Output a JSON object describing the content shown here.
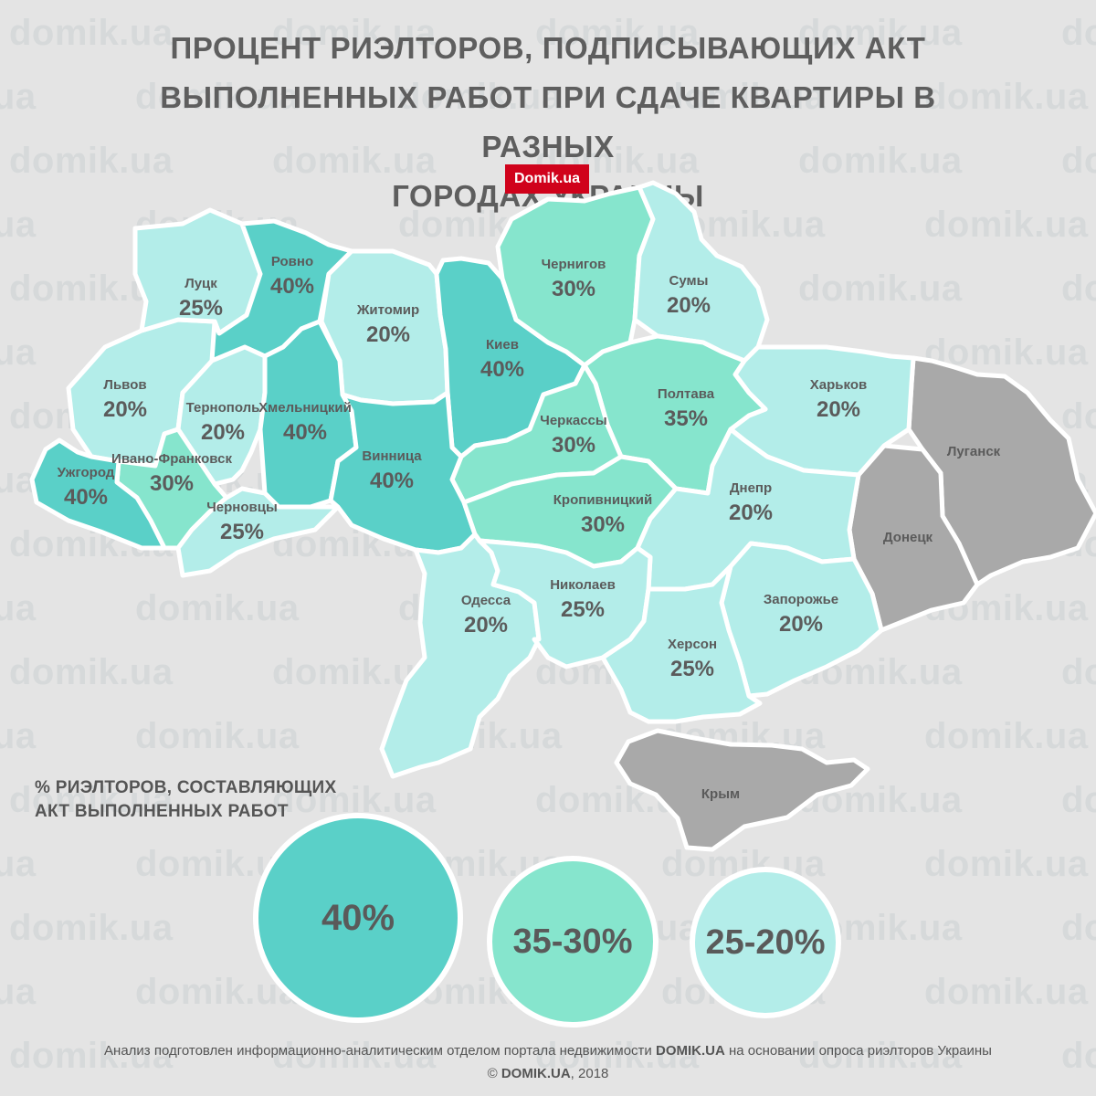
{
  "title_lines": [
    "ПРОЦЕНТ РИЭЛТОРОВ, ПОДПИСЫВАЮЩИХ АКТ",
    "ВЫПОЛНЕННЫХ РАБОТ ПРИ СДАЧЕ КВАРТИРЫ В РАЗНЫХ",
    "ГОРОДАХ УКРАИНЫ"
  ],
  "brand": "Domik.ua",
  "watermark": "domik.ua",
  "colors": {
    "level_40": "#5ad0c8",
    "level_35_30": "#86e5cd",
    "level_25_20": "#b3ede9",
    "no_data": "#a9a9a9",
    "brand": "#d0021b"
  },
  "regions": {
    "lutsk": {
      "name": "Луцк",
      "value": "25%"
    },
    "rivne": {
      "name": "Ровно",
      "value": "40%"
    },
    "zhytomyr": {
      "name": "Житомир",
      "value": "20%"
    },
    "kyiv": {
      "name": "Киев",
      "value": "40%"
    },
    "chernihiv": {
      "name": "Чернигов",
      "value": "30%"
    },
    "sumy": {
      "name": "Сумы",
      "value": "20%"
    },
    "lviv": {
      "name": "Львов",
      "value": "20%"
    },
    "ternopil": {
      "name": "Тернополь",
      "value": "20%"
    },
    "khmelnytskyi": {
      "name": "Хмельницкий",
      "value": "40%"
    },
    "cherkasy": {
      "name": "Черкассы",
      "value": "30%"
    },
    "poltava": {
      "name": "Полтава",
      "value": "35%"
    },
    "kharkiv": {
      "name": "Харьков",
      "value": "20%"
    },
    "uzhhorod": {
      "name": "Ужгород",
      "value": "40%"
    },
    "ivano_frankivsk": {
      "name": "Ивано-Франковск",
      "value": "30%"
    },
    "vinnytsia": {
      "name": "Винница",
      "value": "40%"
    },
    "chernivtsi": {
      "name": "Черновцы",
      "value": "25%"
    },
    "kropyvnytskyi": {
      "name": "Кропивницкий",
      "value": "30%"
    },
    "dnipro": {
      "name": "Днепр",
      "value": "20%"
    },
    "odesa": {
      "name": "Одесса",
      "value": "20%"
    },
    "mykolaiv": {
      "name": "Николаев",
      "value": "25%"
    },
    "zaporizhzhia": {
      "name": "Запорожье",
      "value": "20%"
    },
    "kherson": {
      "name": "Херсон",
      "value": "25%"
    },
    "luhansk": {
      "name": "Луганск"
    },
    "donetsk": {
      "name": "Донецк"
    },
    "crimea": {
      "name": "Крым"
    }
  },
  "legend": {
    "title_lines": [
      "% РИЭЛТОРОВ, СОСТАВЛЯЮЩИХ",
      "АКТ ВЫПОЛНЕННЫХ РАБОТ"
    ],
    "items": [
      {
        "label": "40%",
        "level": "level_40"
      },
      {
        "label": "35-30%",
        "level": "level_35_30"
      },
      {
        "label": "25-20%",
        "level": "level_25_20"
      }
    ]
  },
  "footer": {
    "line1_pre": "Анализ подготовлен информационно-аналитическим отделом портала недвижимости ",
    "line1_brand": "DOMIK.UA",
    "line1_post": " на основании опроса риэлторов Украины",
    "copyright_symbol": "©",
    "copyright_site": "DOMIK.UA",
    "copyright_year": ", 2018"
  }
}
